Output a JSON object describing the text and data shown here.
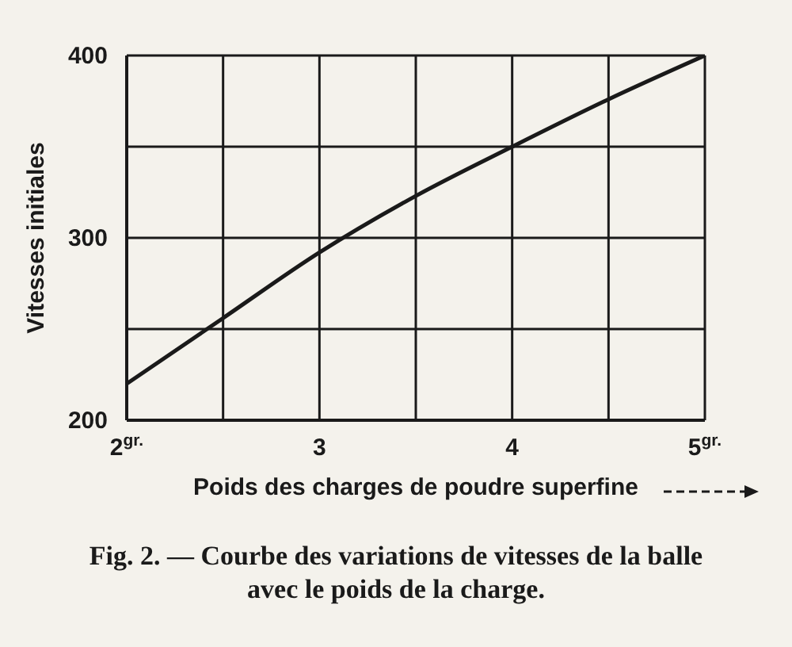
{
  "chart_data": {
    "type": "line",
    "title": "Fig. 2. — Courbe des variations de vitesses de la balle avec le poids de la charge.",
    "xlabel": "Poids des charges de poudre superfine",
    "ylabel": "Vitesses initiales",
    "x": [
      2,
      2.5,
      3,
      3.5,
      4,
      4.5,
      5
    ],
    "series": [
      {
        "color": "#1a1a1a",
        "values": [
          220,
          256,
          292,
          323,
          350,
          376,
          400
        ]
      }
    ],
    "xlim": [
      2,
      5
    ],
    "xticks": [
      {
        "value": 2,
        "label": "2$^{gr.}$"
      },
      {
        "value": 2.5,
        "label": null
      },
      3,
      {
        "value": 3.5,
        "label": null
      },
      4,
      {
        "value": 4.5,
        "label": null
      },
      {
        "value": 5,
        "label": "5$^{gr.}$"
      }
    ],
    "ylim": [
      200,
      400
    ],
    "yticks": [
      200,
      {
        "value": 250,
        "label": null
      },
      300,
      {
        "value": 350,
        "label": null
      },
      400
    ],
    "grid": true,
    "marker": "none",
    "line_style": "solid"
  }
}
